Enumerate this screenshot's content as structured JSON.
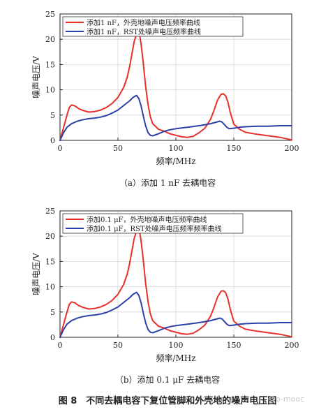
{
  "figure": {
    "caption": "图 8　不同去耦电容下复位管脚和外壳地的噪声电压图",
    "watermark": "@o-mooc"
  },
  "chart_data": [
    {
      "type": "line",
      "subcaption": "（a）添加 1 nF 去耦电容",
      "xlabel": "频率/MHz",
      "ylabel": "噪声电压/V",
      "xlim": [
        0,
        200
      ],
      "ylim": [
        0,
        25
      ],
      "xticks": [
        0,
        50,
        100,
        150,
        200
      ],
      "yticks": [
        0,
        5,
        10,
        15,
        20,
        25
      ],
      "grid": true,
      "legend": "top-left",
      "series": [
        {
          "name": "添加1 nF，外壳地噪声电压频率曲线",
          "color": "#e8302b",
          "x": [
            0,
            3,
            6,
            8,
            10,
            13,
            16,
            20,
            25,
            30,
            35,
            40,
            45,
            50,
            55,
            58,
            60,
            62,
            64,
            66,
            67,
            68,
            69,
            70,
            72,
            74,
            76,
            78,
            80,
            85,
            90,
            95,
            100,
            105,
            110,
            115,
            120,
            125,
            130,
            133,
            136,
            139,
            141,
            143,
            145,
            147,
            150,
            155,
            160,
            170,
            180,
            190,
            200
          ],
          "y": [
            0,
            2.5,
            5,
            6.5,
            7,
            6.8,
            6.3,
            5.9,
            5.6,
            5.7,
            6,
            6.5,
            7.3,
            8.5,
            10.5,
            12.5,
            14.5,
            17,
            19.5,
            21,
            21.5,
            21.2,
            20.5,
            19,
            15,
            10.5,
            7,
            4.6,
            3.3,
            2.2,
            1.8,
            1.3,
            1,
            0.7,
            0.6,
            0.8,
            1.5,
            2.4,
            4.2,
            6,
            8,
            9.1,
            9.2,
            8.8,
            7.5,
            5.5,
            3.2,
            2.2,
            1.6,
            1.2,
            0.9,
            0.6,
            0.1
          ]
        },
        {
          "name": "添加1 nF，RST处噪声电压频率曲线",
          "color": "#2b3fa8",
          "x": [
            0,
            3,
            6,
            10,
            15,
            20,
            25,
            30,
            35,
            40,
            45,
            50,
            55,
            60,
            63,
            66,
            68,
            70,
            72,
            74,
            76,
            78,
            80,
            85,
            90,
            95,
            100,
            110,
            120,
            125,
            130,
            135,
            138,
            140,
            142,
            144,
            146,
            150,
            155,
            160,
            170,
            180,
            190,
            200
          ],
          "y": [
            0,
            1.5,
            2.6,
            3.3,
            3.8,
            4.1,
            4.3,
            4.4,
            4.6,
            4.9,
            5.4,
            6,
            6.9,
            7.8,
            8.5,
            8.9,
            8.3,
            6.8,
            4.7,
            2.8,
            1.5,
            1,
            0.9,
            1.3,
            1.8,
            2.1,
            2.3,
            2.6,
            2.9,
            3.1,
            3.3,
            3.6,
            3.8,
            3.6,
            3.1,
            2.6,
            2.3,
            2.4,
            2.6,
            2.7,
            2.8,
            2.8,
            2.9,
            2.9
          ]
        }
      ]
    },
    {
      "type": "line",
      "subcaption": "（b）添加 0.1 μF 去耦电容",
      "xlabel": "频率/MHz",
      "ylabel": "噪声电压/V",
      "xlim": [
        0,
        200
      ],
      "ylim": [
        0,
        25
      ],
      "xticks": [
        0,
        50,
        100,
        150,
        200
      ],
      "yticks": [
        0,
        5,
        10,
        15,
        20,
        25
      ],
      "grid": true,
      "legend": "top-left",
      "series": [
        {
          "name": "添加0.1 μF，外壳地噪声电压频率曲线",
          "color": "#e8302b",
          "x": [
            0,
            3,
            6,
            8,
            10,
            13,
            16,
            20,
            25,
            30,
            35,
            40,
            45,
            50,
            55,
            58,
            60,
            62,
            64,
            66,
            67,
            68,
            69,
            70,
            72,
            74,
            76,
            78,
            80,
            85,
            90,
            95,
            100,
            105,
            110,
            115,
            120,
            125,
            130,
            133,
            136,
            139,
            141,
            143,
            145,
            147,
            150,
            155,
            160,
            170,
            180,
            190,
            200
          ],
          "y": [
            0,
            2.5,
            5,
            6.5,
            7,
            6.8,
            6.3,
            5.9,
            5.6,
            5.7,
            6,
            6.5,
            7.3,
            8.5,
            10.5,
            12.5,
            14.5,
            17,
            19.5,
            21,
            21.4,
            21.2,
            20.5,
            19,
            15,
            10.5,
            7,
            4.6,
            3.3,
            2.2,
            1.8,
            1.3,
            1,
            0.7,
            0.6,
            0.8,
            1.5,
            2.4,
            4.2,
            6,
            8,
            9.1,
            9.2,
            8.8,
            7.5,
            5.5,
            3.2,
            2.2,
            1.6,
            1.2,
            0.9,
            0.6,
            0.1
          ]
        },
        {
          "name": "添加0.1 μF，RST处噪声电压频率频率曲线",
          "color": "#2b3fa8",
          "x": [
            0,
            3,
            6,
            10,
            15,
            20,
            25,
            30,
            35,
            40,
            45,
            50,
            55,
            60,
            63,
            66,
            68,
            70,
            72,
            74,
            76,
            78,
            80,
            85,
            90,
            95,
            100,
            110,
            120,
            125,
            130,
            135,
            138,
            140,
            142,
            144,
            146,
            150,
            155,
            160,
            170,
            180,
            190,
            200
          ],
          "y": [
            0,
            1.5,
            2.6,
            3.3,
            3.8,
            4.1,
            4.3,
            4.4,
            4.6,
            4.9,
            5.4,
            6,
            6.9,
            7.8,
            8.5,
            8.9,
            8.3,
            6.8,
            4.7,
            2.8,
            1.5,
            1,
            0.9,
            1.3,
            1.8,
            2.1,
            2.3,
            2.6,
            2.9,
            3.1,
            3.3,
            3.6,
            3.8,
            3.6,
            3.1,
            2.6,
            2.3,
            2.4,
            2.6,
            2.7,
            2.8,
            2.8,
            2.9,
            2.9
          ]
        }
      ]
    }
  ]
}
